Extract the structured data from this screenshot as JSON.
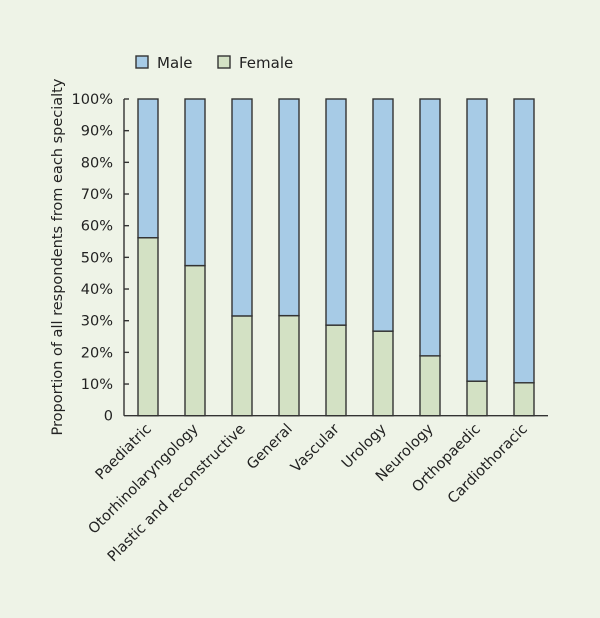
{
  "chart_data": {
    "type": "bar",
    "stacked": true,
    "percent_stacked": true,
    "title": "",
    "xlabel": "",
    "ylabel": "Proportion of all respondents from each specialty",
    "ylim": [
      0,
      100
    ],
    "yticks": [
      0,
      10,
      20,
      30,
      40,
      50,
      60,
      70,
      80,
      90,
      100
    ],
    "ytick_labels": [
      "0",
      "10%",
      "20%",
      "30%",
      "40%",
      "50%",
      "60%",
      "70%",
      "80%",
      "90%",
      "100%"
    ],
    "categories": [
      "Paediatric",
      "Otorhinolaryngology",
      "Plastic and reconstructive",
      "General",
      "Vascular",
      "Urology",
      "Neurology",
      "Orthopaedic",
      "Cardiothoracic"
    ],
    "series": [
      {
        "name": "Female",
        "color": "#d3e1c4",
        "values": [
          56.2,
          47.4,
          31.5,
          31.6,
          28.6,
          26.7,
          18.9,
          10.9,
          10.4
        ]
      },
      {
        "name": "Male",
        "color": "#a7cbe6",
        "values": [
          43.8,
          52.6,
          68.5,
          68.4,
          71.4,
          73.3,
          81.1,
          89.1,
          89.6
        ]
      }
    ],
    "legend": {
      "position": "top-left",
      "entries": [
        {
          "label": "Male",
          "color": "#a7cbe6"
        },
        {
          "label": "Female",
          "color": "#d3e1c4"
        }
      ]
    },
    "grid": false,
    "x_tick_rotation_deg": -45
  },
  "colors": {
    "background": "#eef3e7",
    "stroke": "#333333",
    "text": "#222222"
  }
}
